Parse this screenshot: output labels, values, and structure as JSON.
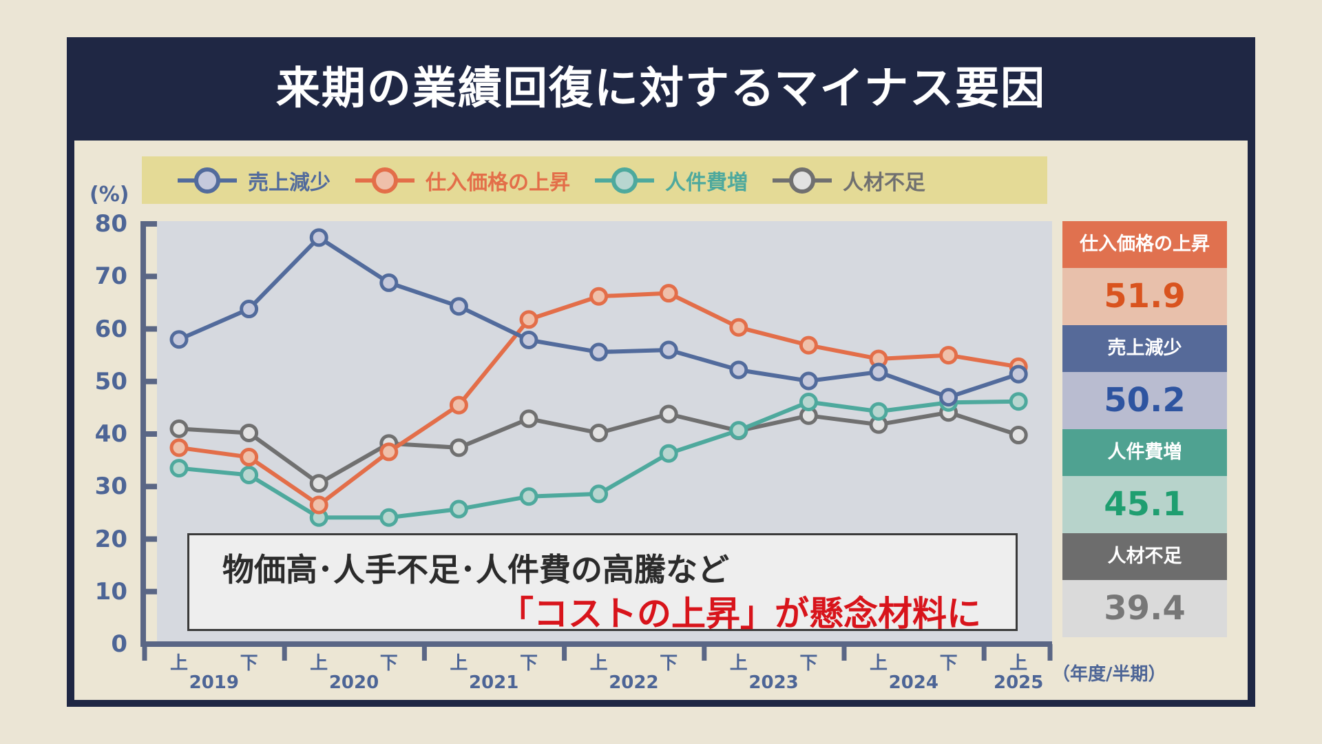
{
  "title": "来期の業績回復に対するマイナス要因",
  "colors": {
    "background": "#ebe5d5",
    "frame": "#1f2744",
    "legend_bg": "#e4da96",
    "plot_bg": "#d6d9df",
    "axis": "#4d6596"
  },
  "chart_data": {
    "type": "line",
    "ylabel": "(%)",
    "xlabel": "（年度/半期）",
    "ylim": [
      0,
      80
    ],
    "yticks": [
      "0",
      "10",
      "20",
      "30",
      "40",
      "50",
      "60",
      "70",
      "80"
    ],
    "x_half_labels": [
      "上",
      "下",
      "上",
      "下",
      "上",
      "下",
      "上",
      "下",
      "上",
      "下",
      "上",
      "下",
      "上"
    ],
    "x_year_labels": [
      "2019",
      "2020",
      "2021",
      "2022",
      "2023",
      "2024",
      "2025"
    ],
    "legend_placement": "top",
    "grid": false,
    "series": [
      {
        "name": "売上減少",
        "color": "#526b9c",
        "fill": "#c5c9dc",
        "values": [
          58.0,
          63.8,
          77.4,
          68.8,
          64.3,
          57.9,
          55.6,
          56.0,
          52.2,
          50.1,
          51.8,
          47.0,
          51.4
        ]
      },
      {
        "name": "仕入価格の上昇",
        "color": "#e36e49",
        "fill": "#efc0aa",
        "values": [
          37.4,
          35.6,
          26.5,
          36.6,
          45.5,
          61.8,
          66.2,
          66.8,
          60.3,
          56.9,
          54.3,
          55.0,
          52.8
        ]
      },
      {
        "name": "人件費増",
        "color": "#4ea99d",
        "fill": "#b8d6d0",
        "values": [
          33.5,
          32.2,
          24.1,
          24.1,
          25.7,
          28.1,
          28.6,
          36.3,
          40.7,
          46.1,
          44.3,
          46.0,
          46.2
        ]
      },
      {
        "name": "人材不足",
        "color": "#707070",
        "fill": "#e2e2e2",
        "values": [
          41.0,
          40.2,
          30.6,
          38.2,
          37.4,
          42.9,
          40.2,
          43.8,
          40.6,
          43.5,
          41.8,
          44.1,
          39.8
        ]
      }
    ]
  },
  "annotation": {
    "line1": "物価高･人手不足･人件費の高騰など",
    "line2": "「コストの上昇」が懸念材料に"
  },
  "side_panel": [
    {
      "label": "仕入価格の上昇",
      "value": "51.9",
      "header_color": "#e0714f",
      "bg": "#e8c0ab",
      "text_color": "#d9531e"
    },
    {
      "label": "売上減少",
      "value": "50.2",
      "header_color": "#566a99",
      "bg": "#b9bcd0",
      "text_color": "#2e54a0"
    },
    {
      "label": "人件費増",
      "value": "45.1",
      "header_color": "#4fa291",
      "bg": "#b7d3cb",
      "text_color": "#1f9e70"
    },
    {
      "label": "人材不足",
      "value": "39.4",
      "header_color": "#6d6d6d",
      "bg": "#dadada",
      "text_color": "#777777"
    }
  ]
}
